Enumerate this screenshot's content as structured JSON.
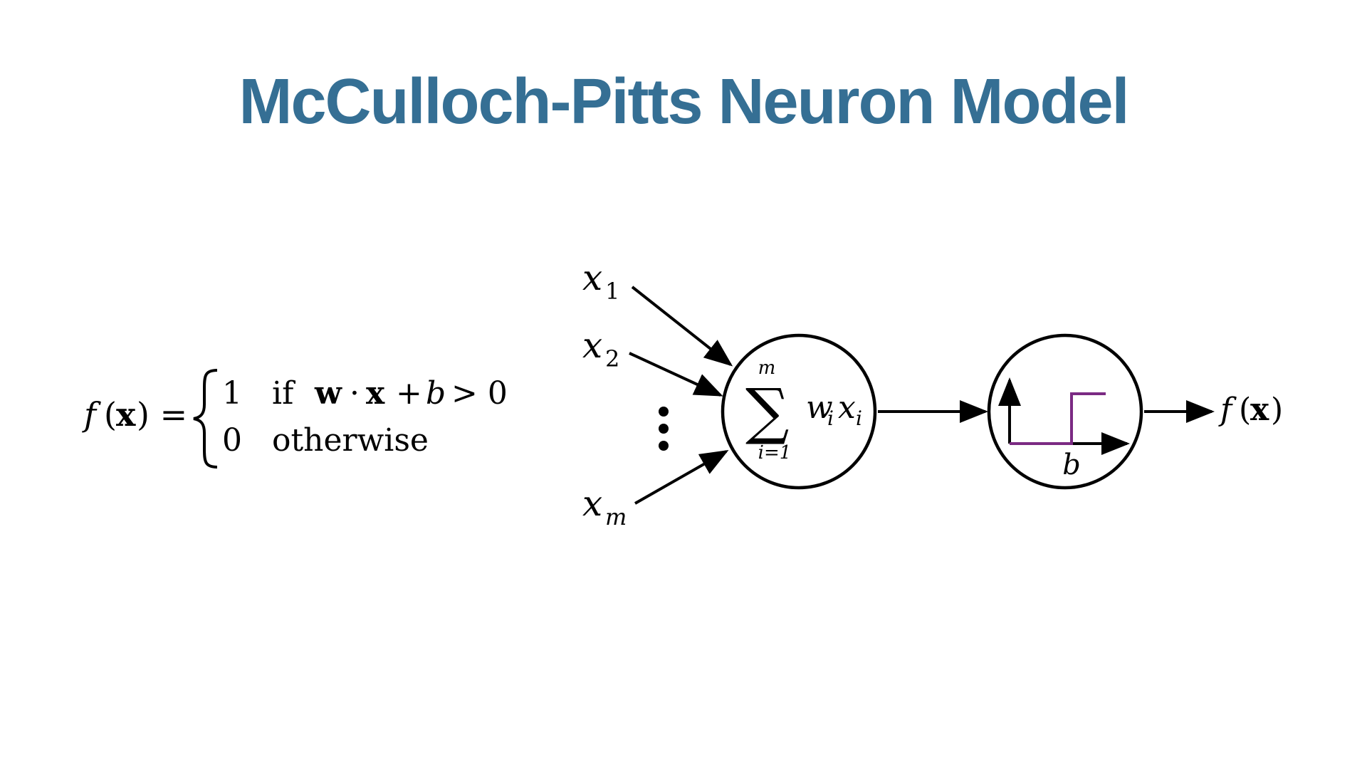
{
  "title": "McCulloch-Pitts Neuron Model",
  "colors": {
    "title": "#356f94",
    "input": "#e2652a",
    "weight": "#3b6b95",
    "bias": "#7b2a83",
    "ink": "#000000"
  },
  "equation": {
    "f": "f",
    "lparen": "(",
    "x": "x",
    "rparen_eq": ") =",
    "case1_value": "1",
    "case1_if": "if",
    "case1_w": "w",
    "case1_dot": "·",
    "case1_x": "x",
    "case1_plus": "+",
    "case1_b": "b",
    "case1_cmp": "> 0",
    "case2_value": "0",
    "case2_text": "otherwise"
  },
  "inputs": [
    {
      "base": "x",
      "sub": "1"
    },
    {
      "base": "x",
      "sub": "2"
    },
    {
      "base": "x",
      "sub": "m"
    }
  ],
  "summation": {
    "symbol": "∑",
    "upper": "m",
    "lower": "i=1",
    "w": "w",
    "w_sub": "i",
    "x": "x",
    "x_sub": "i"
  },
  "activation": {
    "threshold_label": "b",
    "step_low": 0,
    "step_high": 1
  },
  "output": {
    "f": "f",
    "lparen": "(",
    "x": "x",
    "rparen": ")"
  }
}
